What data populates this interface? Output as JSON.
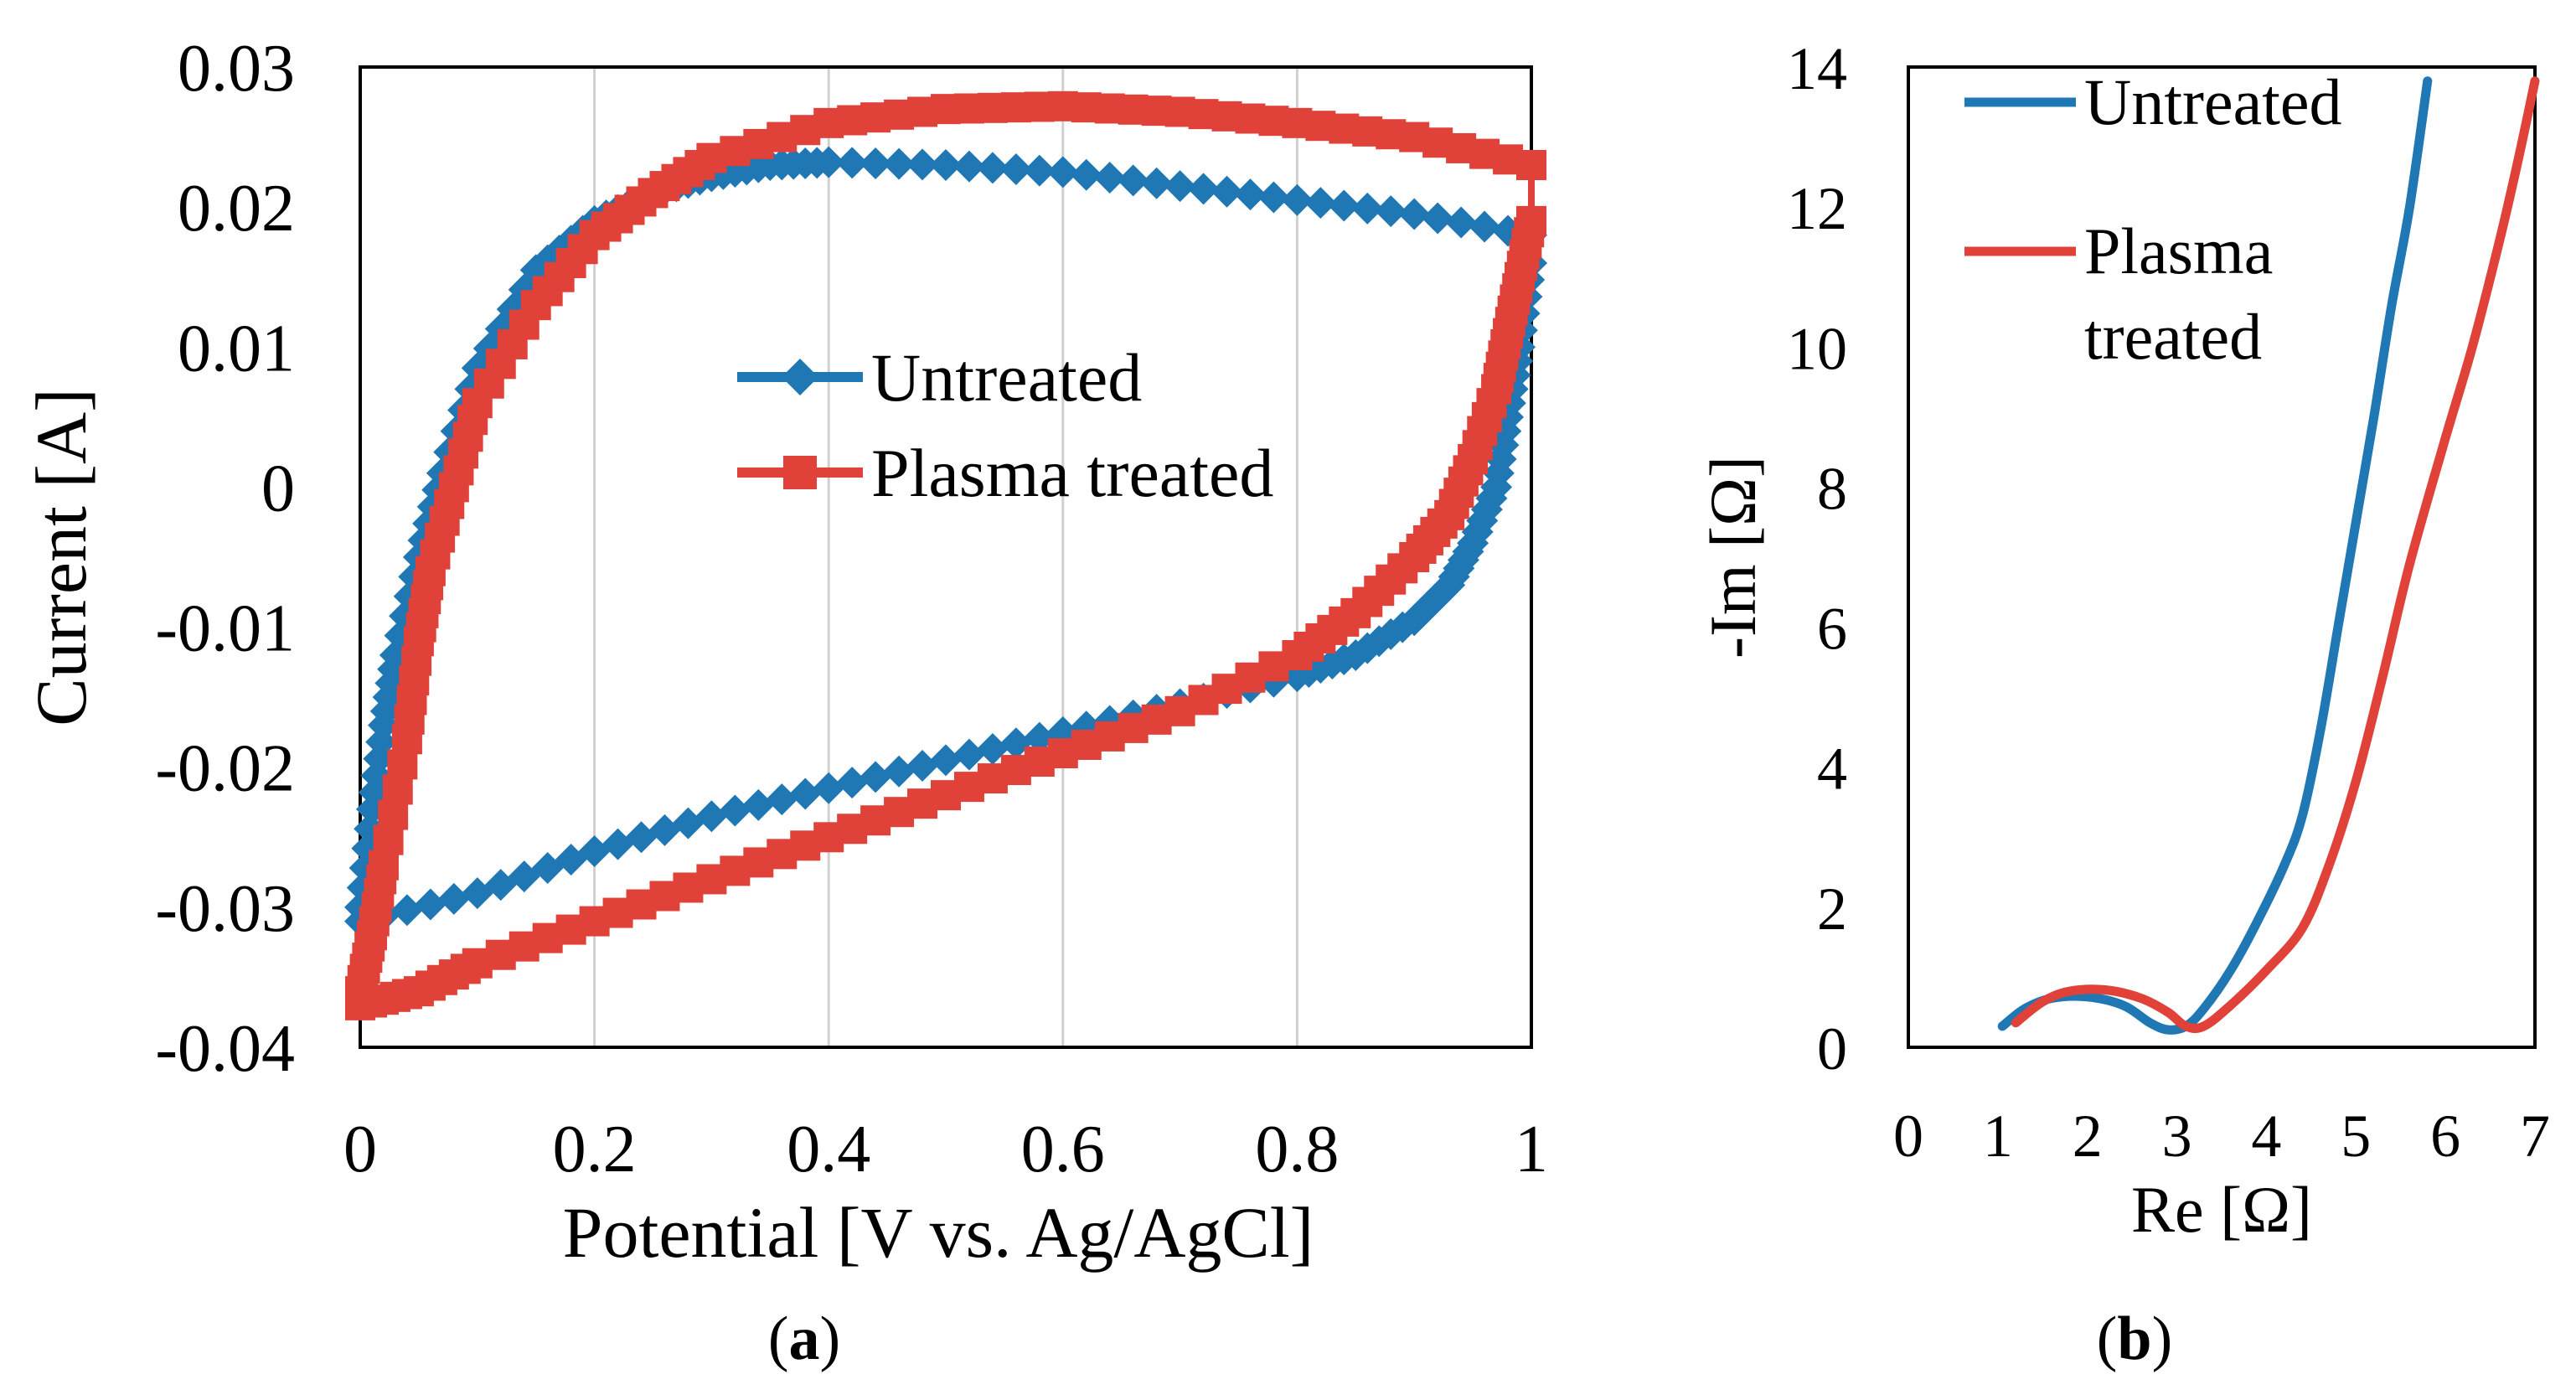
{
  "chart_data": [
    {
      "panel_label": "a",
      "type": "scatter",
      "xlabel": "Potential [V vs. Ag/AgCl]",
      "ylabel": "Current [A]",
      "xlim": [
        0,
        1
      ],
      "ylim": [
        -0.04,
        0.03
      ],
      "x_ticks": [
        "0",
        "0.2",
        "0.4",
        "0.6",
        "0.8",
        "1"
      ],
      "y_ticks": [
        "0.03",
        "0.02",
        "0.01",
        "0",
        "-0.01",
        "-0.02",
        "-0.03",
        "-0.04"
      ],
      "grid": "vertical",
      "legend": "center-right",
      "series": [
        {
          "name": "Untreated",
          "color": "#1f77b4",
          "marker": "diamond",
          "forward": [
            [
              0.0,
              -0.031
            ],
            [
              0.1,
              -0.029
            ],
            [
              0.2,
              -0.026
            ],
            [
              0.3,
              -0.0235
            ],
            [
              0.4,
              -0.0215
            ],
            [
              0.5,
              -0.0195
            ],
            [
              0.6,
              -0.0175
            ],
            [
              0.7,
              -0.0155
            ],
            [
              0.8,
              -0.0135
            ],
            [
              0.85,
              -0.012
            ],
            [
              0.9,
              -0.0095
            ],
            [
              0.93,
              -0.007
            ],
            [
              0.95,
              -0.004
            ],
            [
              0.97,
              0.0
            ],
            [
              0.98,
              0.005
            ],
            [
              0.99,
              0.01
            ],
            [
              1.0,
              0.016
            ]
          ],
          "reverse": [
            [
              1.0,
              0.018
            ],
            [
              0.9,
              0.0195
            ],
            [
              0.8,
              0.0205
            ],
            [
              0.7,
              0.0215
            ],
            [
              0.6,
              0.0225
            ],
            [
              0.5,
              0.023
            ],
            [
              0.4,
              0.0232
            ],
            [
              0.35,
              0.023
            ],
            [
              0.3,
              0.0222
            ],
            [
              0.25,
              0.021
            ],
            [
              0.2,
              0.019
            ],
            [
              0.15,
              0.0155
            ],
            [
              0.1,
              0.0085
            ],
            [
              0.07,
              0.001
            ],
            [
              0.05,
              -0.005
            ],
            [
              0.03,
              -0.012
            ],
            [
              0.02,
              -0.017
            ],
            [
              0.01,
              -0.023
            ],
            [
              0.0,
              -0.03
            ]
          ]
        },
        {
          "name": "Plasma treated",
          "color": "#e0423a",
          "marker": "square",
          "forward": [
            [
              0.0,
              -0.037
            ],
            [
              0.05,
              -0.036
            ],
            [
              0.1,
              -0.034
            ],
            [
              0.2,
              -0.031
            ],
            [
              0.3,
              -0.028
            ],
            [
              0.4,
              -0.025
            ],
            [
              0.5,
              -0.022
            ],
            [
              0.6,
              -0.019
            ],
            [
              0.7,
              -0.016
            ],
            [
              0.8,
              -0.012
            ],
            [
              0.85,
              -0.009
            ],
            [
              0.9,
              -0.005
            ],
            [
              0.93,
              -0.002
            ],
            [
              0.95,
              0.002
            ],
            [
              0.97,
              0.007
            ],
            [
              0.98,
              0.011
            ],
            [
              0.99,
              0.015
            ],
            [
              1.0,
              0.019
            ]
          ],
          "reverse": [
            [
              1.0,
              0.023
            ],
            [
              0.9,
              0.025
            ],
            [
              0.8,
              0.026
            ],
            [
              0.7,
              0.0268
            ],
            [
              0.6,
              0.0272
            ],
            [
              0.5,
              0.027
            ],
            [
              0.4,
              0.026
            ],
            [
              0.3,
              0.0235
            ],
            [
              0.25,
              0.021
            ],
            [
              0.2,
              0.018
            ],
            [
              0.15,
              0.013
            ],
            [
              0.1,
              0.006
            ],
            [
              0.08,
              0.0
            ],
            [
              0.06,
              -0.006
            ],
            [
              0.05,
              -0.011
            ],
            [
              0.04,
              -0.018
            ],
            [
              0.02,
              -0.027
            ],
            [
              0.01,
              -0.032
            ],
            [
              0.0,
              -0.036
            ]
          ]
        }
      ]
    },
    {
      "panel_label": "b",
      "type": "line",
      "xlabel": "Re [Ω]",
      "ylabel": "-Im [Ω]",
      "xlim": [
        0,
        7
      ],
      "ylim": [
        0,
        14
      ],
      "x_ticks": [
        "0",
        "1",
        "2",
        "3",
        "4",
        "5",
        "6",
        "7"
      ],
      "y_ticks": [
        "14",
        "12",
        "10",
        "8",
        "6",
        "4",
        "2",
        "0"
      ],
      "grid": "none",
      "legend": "top-left",
      "series": [
        {
          "name": "Untreated",
          "color": "#1f77b4",
          "points": [
            [
              1.05,
              0.3
            ],
            [
              1.3,
              0.55
            ],
            [
              1.6,
              0.7
            ],
            [
              2.0,
              0.72
            ],
            [
              2.4,
              0.6
            ],
            [
              2.7,
              0.35
            ],
            [
              2.9,
              0.25
            ],
            [
              3.1,
              0.3
            ],
            [
              3.3,
              0.55
            ],
            [
              3.6,
              1.1
            ],
            [
              3.9,
              1.8
            ],
            [
              4.2,
              2.6
            ],
            [
              4.4,
              3.3
            ],
            [
              4.6,
              4.5
            ],
            [
              4.8,
              6.0
            ],
            [
              5.0,
              7.5
            ],
            [
              5.2,
              9.0
            ],
            [
              5.4,
              10.6
            ],
            [
              5.6,
              12.0
            ],
            [
              5.8,
              13.8
            ]
          ]
        },
        {
          "name": "Plasma treated",
          "color": "#e0423a",
          "points": [
            [
              1.2,
              0.35
            ],
            [
              1.5,
              0.65
            ],
            [
              1.8,
              0.8
            ],
            [
              2.2,
              0.82
            ],
            [
              2.6,
              0.7
            ],
            [
              2.9,
              0.5
            ],
            [
              3.1,
              0.3
            ],
            [
              3.3,
              0.3
            ],
            [
              3.6,
              0.6
            ],
            [
              4.0,
              1.1
            ],
            [
              4.4,
              1.7
            ],
            [
              4.7,
              2.6
            ],
            [
              5.0,
              3.8
            ],
            [
              5.3,
              5.3
            ],
            [
              5.6,
              6.9
            ],
            [
              6.0,
              8.7
            ],
            [
              6.3,
              10.0
            ],
            [
              6.6,
              11.5
            ],
            [
              6.8,
              12.6
            ],
            [
              7.0,
              13.8
            ]
          ]
        }
      ]
    }
  ],
  "panels": {
    "a": {
      "label_text": "a",
      "legend": [
        "Untreated",
        "Plasma treated"
      ]
    },
    "b": {
      "label_text": "b",
      "legend_line1": "Untreated",
      "legend_line2a": "Plasma",
      "legend_line2b": "treated"
    }
  },
  "colors": {
    "untreated": "#1f77b4",
    "plasma": "#e0423a"
  }
}
